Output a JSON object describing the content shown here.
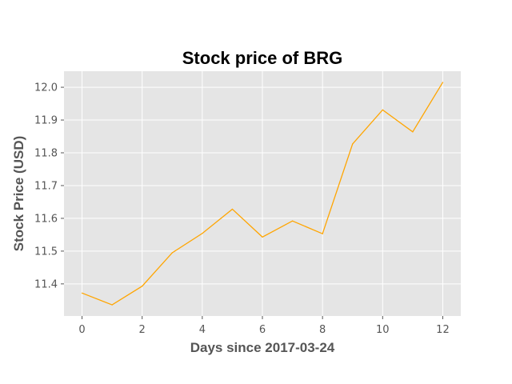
{
  "chart_data": {
    "type": "line",
    "title": "Stock price of BRG",
    "xlabel": "Days since 2017-03-24",
    "ylabel": "Stock Price (USD)",
    "x": [
      0,
      1,
      2,
      3,
      4,
      5,
      6,
      7,
      8,
      9,
      10,
      11,
      12
    ],
    "series": [
      {
        "values": [
          11.372,
          11.336,
          11.393,
          11.495,
          11.554,
          11.628,
          11.543,
          11.592,
          11.553,
          11.827,
          11.931,
          11.864,
          12.015
        ],
        "color": "#FFA500"
      }
    ],
    "xlim": [
      -0.6,
      12.6
    ],
    "ylim": [
      11.302,
      12.049
    ],
    "xticks": [
      0,
      2,
      4,
      6,
      8,
      10,
      12
    ],
    "yticks": [
      11.4,
      11.5,
      11.6,
      11.7,
      11.8,
      11.9,
      12.0
    ],
    "ytick_labels": [
      "11.4",
      "11.5",
      "11.6",
      "11.7",
      "11.8",
      "11.9",
      "12.0"
    ],
    "grid": true,
    "style": {
      "background": "#E5E5E5",
      "grid_color": "#FFFFFF",
      "text_color": "#555555"
    }
  }
}
